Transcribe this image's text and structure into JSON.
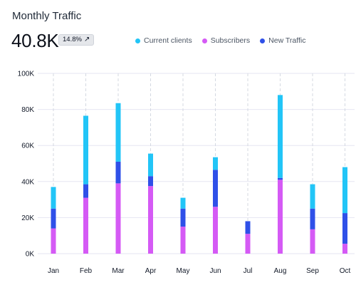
{
  "header": {
    "title": "Monthly Traffic",
    "total": "40.8K",
    "change": "14.8%",
    "change_icon": "arrow-up-right-icon"
  },
  "colors": {
    "current_clients": "#22c5f7",
    "subscribers": "#d55af5",
    "new_traffic": "#2f50e8",
    "grid": "#e6e6f2",
    "vgrid": "#d4d9e2"
  },
  "chart_data": {
    "type": "bar",
    "stacked": true,
    "categories": [
      "Jan",
      "Feb",
      "Mar",
      "Apr",
      "May",
      "Jun",
      "Jul",
      "Aug",
      "Sep",
      "Oct"
    ],
    "series": [
      {
        "name": "Subscribers",
        "values": [
          14000,
          31000,
          39000,
          37500,
          15000,
          26000,
          11000,
          41000,
          13500,
          5500
        ]
      },
      {
        "name": "New Traffic",
        "values": [
          11000,
          7500,
          12000,
          5500,
          10000,
          20500,
          7000,
          1000,
          11500,
          17000
        ]
      },
      {
        "name": "Current clients",
        "values": [
          12000,
          38000,
          32500,
          12500,
          6000,
          7000,
          0,
          46000,
          13500,
          25500
        ]
      }
    ],
    "yticks": [
      "0K",
      "20K",
      "40K",
      "60K",
      "80K",
      "100K"
    ],
    "ylim": [
      0,
      100000
    ],
    "grid": true,
    "legend_position": "top"
  }
}
